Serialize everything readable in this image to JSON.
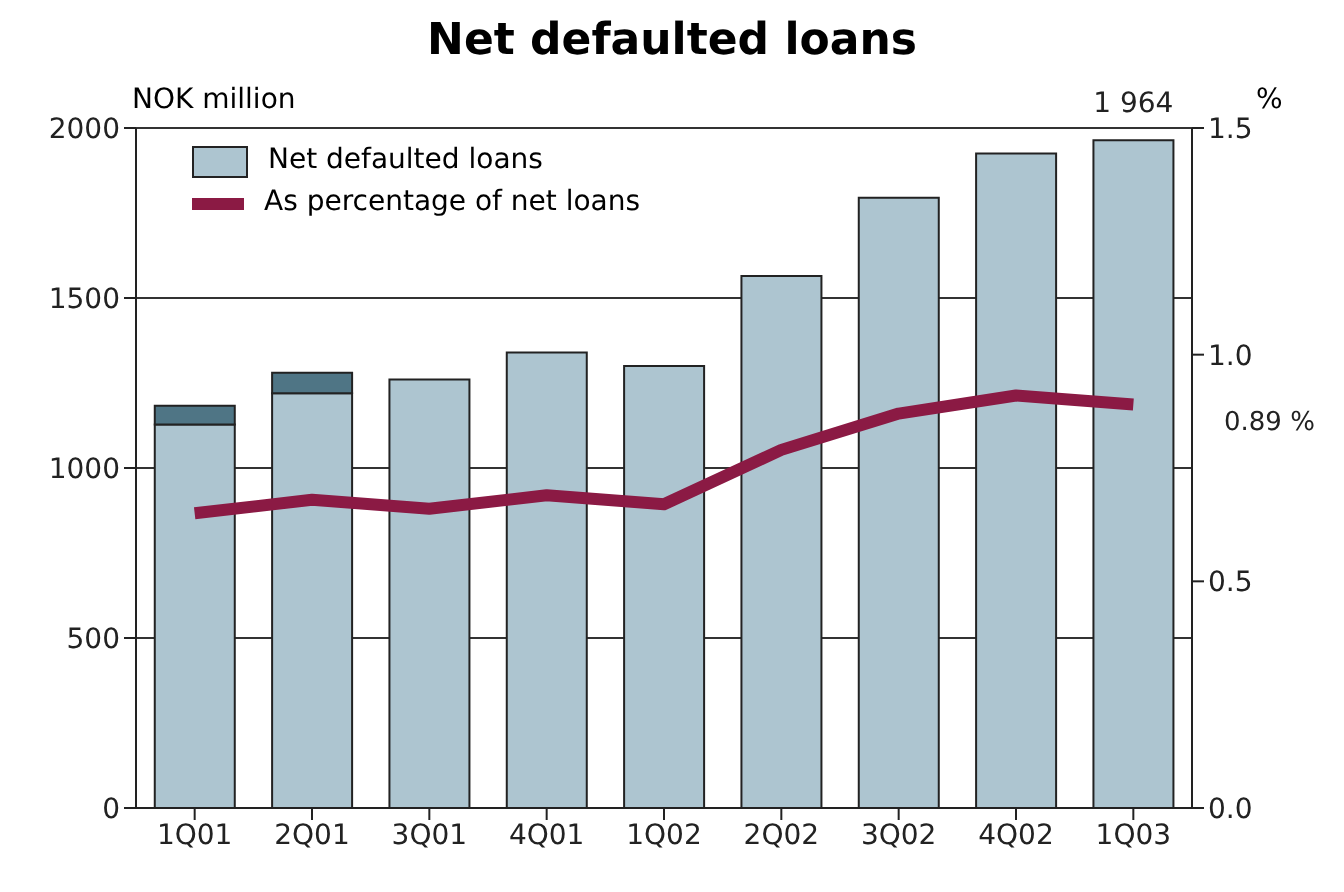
{
  "chart_data": {
    "type": "bar",
    "title": "Net defaulted loans",
    "ylabel": "NOK million",
    "y2label": "%",
    "categories": [
      "1Q01",
      "2Q01",
      "3Q01",
      "4Q01",
      "1Q02",
      "2Q02",
      "3Q02",
      "4Q02",
      "1Q03"
    ],
    "stacked": true,
    "series": [
      {
        "name": "Net defaulted loans",
        "color": "#adc5d0",
        "values": [
          1128,
          1220,
          1260,
          1340,
          1300,
          1565,
          1795,
          1925,
          1964
        ]
      },
      {
        "name": "As percentage of net loans",
        "type": "line",
        "axis": "y2",
        "color": "#8b1a44",
        "values": [
          0.65,
          0.68,
          0.66,
          0.69,
          0.67,
          0.79,
          0.87,
          0.91,
          0.89
        ]
      },
      {
        "color": "#4f7585",
        "values": [
          55,
          60,
          null,
          null,
          null,
          null,
          null,
          null,
          null
        ]
      }
    ],
    "ylim": [
      0,
      2000
    ],
    "yticks": [
      0,
      500,
      1000,
      1500,
      2000
    ],
    "y2lim": [
      0,
      1.5
    ],
    "y2ticks": [
      {
        "value": 0,
        "label": "0.0"
      },
      0.5,
      {
        "value": 1,
        "label": "1.0"
      },
      1.5
    ],
    "annotations": [
      {
        "text": "1 964",
        "x": "1Q03",
        "y": 1964
      },
      "0.89 %"
    ],
    "grid": "y",
    "legend": "top left",
    "marker": "none",
    "line_style": "solid"
  }
}
